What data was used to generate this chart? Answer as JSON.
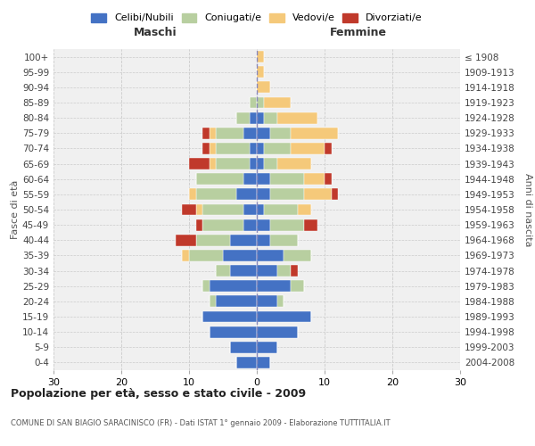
{
  "age_groups": [
    "0-4",
    "5-9",
    "10-14",
    "15-19",
    "20-24",
    "25-29",
    "30-34",
    "35-39",
    "40-44",
    "45-49",
    "50-54",
    "55-59",
    "60-64",
    "65-69",
    "70-74",
    "75-79",
    "80-84",
    "85-89",
    "90-94",
    "95-99",
    "100+"
  ],
  "birth_years": [
    "2004-2008",
    "1999-2003",
    "1994-1998",
    "1989-1993",
    "1984-1988",
    "1979-1983",
    "1974-1978",
    "1969-1973",
    "1964-1968",
    "1959-1963",
    "1954-1958",
    "1949-1953",
    "1944-1948",
    "1939-1943",
    "1934-1938",
    "1929-1933",
    "1924-1928",
    "1919-1923",
    "1914-1918",
    "1909-1913",
    "≤ 1908"
  ],
  "males": {
    "celibi": [
      3,
      4,
      7,
      8,
      6,
      7,
      4,
      5,
      4,
      2,
      2,
      3,
      2,
      1,
      1,
      2,
      1,
      0,
      0,
      0,
      0
    ],
    "coniugati": [
      0,
      0,
      0,
      0,
      1,
      1,
      2,
      5,
      5,
      6,
      6,
      6,
      7,
      5,
      5,
      4,
      2,
      1,
      0,
      0,
      0
    ],
    "vedovi": [
      0,
      0,
      0,
      0,
      0,
      0,
      0,
      1,
      0,
      0,
      1,
      1,
      0,
      1,
      1,
      1,
      0,
      0,
      0,
      0,
      0
    ],
    "divorziati": [
      0,
      0,
      0,
      0,
      0,
      0,
      0,
      0,
      3,
      1,
      2,
      0,
      0,
      3,
      1,
      1,
      0,
      0,
      0,
      0,
      0
    ]
  },
  "females": {
    "nubili": [
      2,
      3,
      6,
      8,
      3,
      5,
      3,
      4,
      2,
      2,
      1,
      2,
      2,
      1,
      1,
      2,
      1,
      0,
      0,
      0,
      0
    ],
    "coniugate": [
      0,
      0,
      0,
      0,
      1,
      2,
      2,
      4,
      4,
      5,
      5,
      5,
      5,
      2,
      4,
      3,
      2,
      1,
      0,
      0,
      0
    ],
    "vedove": [
      0,
      0,
      0,
      0,
      0,
      0,
      0,
      0,
      0,
      0,
      2,
      4,
      3,
      5,
      5,
      7,
      6,
      4,
      2,
      1,
      1
    ],
    "divorziate": [
      0,
      0,
      0,
      0,
      0,
      0,
      1,
      0,
      0,
      2,
      0,
      1,
      1,
      0,
      1,
      0,
      0,
      0,
      0,
      0,
      0
    ]
  },
  "colors": {
    "celibi": "#4472c4",
    "coniugati": "#b8cfa0",
    "vedovi": "#f5c97a",
    "divorziati": "#c0392b"
  },
  "title": "Popolazione per età, sesso e stato civile - 2009",
  "subtitle": "COMUNE DI SAN BIAGIO SARACINISCO (FR) - Dati ISTAT 1° gennaio 2009 - Elaborazione TUTTITALIA.IT",
  "xlabel_left": "Maschi",
  "xlabel_right": "Femmine",
  "ylabel_left": "Fasce di età",
  "ylabel_right": "Anni di nascita",
  "xlim": 30,
  "bg_color": "#ffffff",
  "plot_bg": "#f0f0f0",
  "grid_color": "#cccccc",
  "legend_labels": [
    "Celibi/Nubili",
    "Coniugati/e",
    "Vedovi/e",
    "Divorziati/e"
  ]
}
